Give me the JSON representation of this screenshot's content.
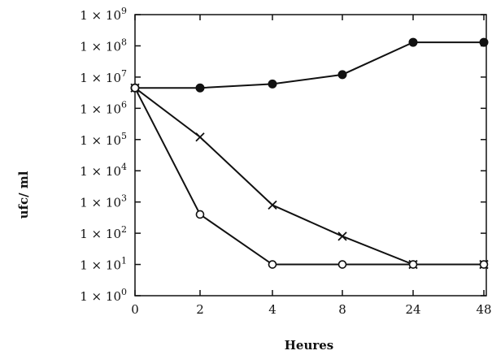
{
  "chart_data": {
    "type": "line",
    "xlabel": "Heures",
    "ylabel": "ufc/ ml",
    "x_tick_labels": [
      "0",
      "2",
      "4",
      "8",
      "24",
      "48"
    ],
    "y_tick_labels": [
      {
        "base": "1 × 10",
        "exp": "9"
      },
      {
        "base": "1 × 10",
        "exp": "8"
      },
      {
        "base": "1 × 10",
        "exp": "7"
      },
      {
        "base": "1 × 10",
        "exp": "6"
      },
      {
        "base": "1 × 10",
        "exp": "5"
      },
      {
        "base": "1 × 10",
        "exp": "4"
      },
      {
        "base": "1 × 10",
        "exp": "3"
      },
      {
        "base": "1 × 10",
        "exp": "2"
      },
      {
        "base": "1 × 10",
        "exp": "1"
      },
      {
        "base": "1 × 10",
        "exp": "0"
      }
    ],
    "y_scale": "log",
    "ylim": [
      1,
      1000000000
    ],
    "x": [
      "0",
      "2",
      "4",
      "8",
      "24",
      "48"
    ],
    "series": [
      {
        "marker": "filled-circle",
        "values": [
          4500000,
          4500000,
          6000000,
          12000000,
          130000000,
          130000000
        ]
      },
      {
        "marker": "cross",
        "values": [
          4500000,
          120000,
          800,
          80,
          10,
          10
        ]
      },
      {
        "marker": "open-circle",
        "values": [
          4500000,
          400,
          10,
          10,
          10,
          10
        ]
      }
    ],
    "grid": false
  }
}
